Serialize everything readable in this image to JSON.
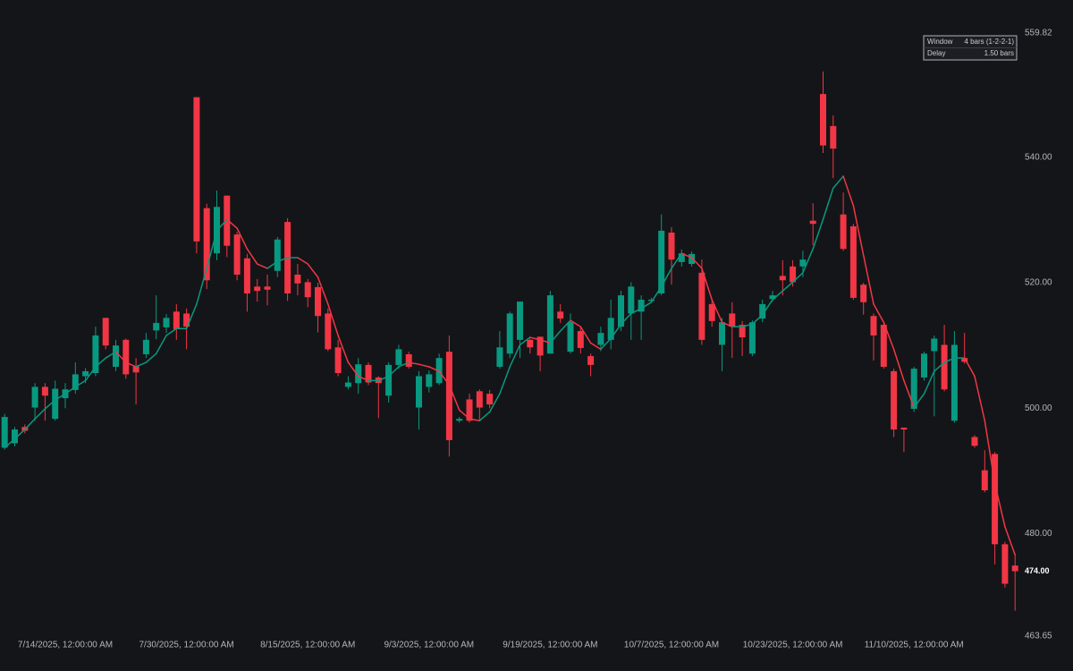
{
  "chart_data": {
    "type": "candlestick",
    "up_color": "#089981",
    "down_color": "#f23645",
    "grid": false,
    "categories": [
      null,
      null,
      null,
      null,
      null,
      null,
      "7/14/2025, 12:00:00 AM",
      null,
      null,
      null,
      null,
      null,
      null,
      null,
      null,
      null,
      null,
      null,
      "7/30/2025, 12:00:00 AM",
      null,
      null,
      null,
      null,
      null,
      null,
      null,
      null,
      null,
      null,
      null,
      "8/15/2025, 12:00:00 AM",
      null,
      null,
      null,
      null,
      null,
      null,
      null,
      null,
      null,
      null,
      null,
      "9/3/2025, 12:00:00 AM",
      null,
      null,
      null,
      null,
      null,
      null,
      null,
      null,
      null,
      null,
      null,
      "9/19/2025, 12:00:00 AM",
      null,
      null,
      null,
      null,
      null,
      null,
      null,
      null,
      null,
      null,
      null,
      "10/7/2025, 12:00:00 AM",
      null,
      null,
      null,
      null,
      null,
      null,
      null,
      null,
      null,
      null,
      null,
      "10/23/2025, 12:00:00 AM",
      null,
      null,
      null,
      null,
      null,
      null,
      null,
      null,
      null,
      null,
      null,
      "11/10/2025, 12:00:00 AM",
      null,
      null,
      null,
      null,
      null,
      null,
      null,
      null,
      null,
      null
    ],
    "open": [
      493.7,
      494.4,
      497.0,
      500.1,
      503.4,
      498.3,
      501.6,
      502.9,
      505.1,
      505.6,
      514.4,
      506.6,
      510.9,
      506.7,
      508.6,
      512.4,
      512.9,
      515.4,
      515.1,
      549.6,
      531.9,
      524.7,
      533.9,
      527.7,
      523.9,
      519.4,
      519.4,
      521.9,
      529.7,
      521.3,
      520.1,
      519.3,
      515.1,
      509.7,
      503.4,
      504.0,
      506.9,
      504.9,
      502.0,
      506.9,
      508.6,
      500.1,
      503.4,
      504.0,
      509.0,
      498.0,
      501.4,
      502.7,
      502.3,
      506.6,
      508.7,
      510.9,
      510.9,
      511.4,
      508.7,
      515.4,
      509.0,
      512.3,
      508.3,
      510.1,
      510.9,
      513.0,
      515.1,
      515.4,
      517.1,
      518.3,
      528.0,
      523.3,
      523.0,
      521.6,
      516.6,
      510.1,
      515.1,
      513.3,
      508.7,
      514.3,
      517.4,
      521.1,
      522.6,
      522.6,
      529.9,
      550.1,
      545.0,
      530.9,
      529.0,
      519.7,
      514.7,
      513.3,
      505.9,
      496.9,
      499.9,
      504.9,
      509.1,
      510.1,
      498.0,
      508.0,
      495.4,
      490.1,
      492.7,
      478.3,
      474.9
    ],
    "high": [
      499.1,
      497.0,
      497.4,
      504.0,
      504.0,
      504.4,
      504.0,
      507.3,
      506.4,
      513.0,
      514.4,
      510.9,
      511.1,
      508.0,
      512.0,
      518.0,
      515.0,
      516.6,
      515.9,
      549.6,
      532.6,
      534.7,
      533.9,
      528.1,
      524.6,
      520.6,
      521.3,
      527.3,
      530.3,
      523.0,
      520.6,
      520.0,
      515.9,
      510.9,
      505.1,
      508.0,
      507.3,
      505.1,
      507.3,
      510.1,
      509.0,
      505.9,
      506.0,
      508.7,
      511.6,
      498.6,
      502.3,
      503.0,
      502.9,
      512.3,
      515.4,
      517.0,
      511.1,
      511.4,
      518.7,
      516.6,
      515.1,
      513.0,
      508.7,
      513.0,
      517.3,
      518.7,
      520.1,
      518.0,
      517.6,
      530.9,
      528.9,
      525.3,
      525.0,
      523.7,
      517.3,
      514.4,
      516.9,
      513.9,
      514.0,
      517.3,
      518.7,
      523.6,
      523.6,
      525.1,
      532.7,
      553.7,
      546.7,
      534.4,
      529.4,
      520.0,
      515.1,
      513.4,
      506.3,
      496.9,
      506.6,
      509.0,
      511.6,
      513.3,
      512.3,
      512.0,
      495.7,
      493.3,
      493.0,
      478.7,
      476.6
    ],
    "low": [
      493.4,
      493.9,
      496.0,
      498.0,
      498.0,
      498.0,
      500.0,
      502.3,
      504.0,
      505.1,
      509.4,
      505.9,
      504.7,
      500.6,
      508.0,
      511.0,
      512.0,
      510.9,
      509.4,
      524.7,
      519.0,
      523.6,
      524.1,
      520.4,
      515.4,
      517.0,
      516.4,
      520.9,
      517.1,
      518.0,
      516.1,
      512.1,
      509.1,
      505.1,
      503.0,
      502.3,
      503.7,
      498.4,
      500.9,
      506.3,
      506.3,
      496.6,
      502.5,
      503.7,
      492.3,
      497.7,
      497.7,
      498.0,
      500.0,
      506.3,
      508.0,
      508.0,
      508.7,
      505.9,
      508.7,
      513.6,
      508.7,
      508.7,
      505.1,
      509.1,
      509.4,
      512.3,
      510.9,
      510.9,
      516.9,
      518.0,
      519.7,
      522.6,
      522.6,
      510.1,
      513.0,
      505.9,
      508.0,
      508.3,
      508.3,
      513.7,
      517.0,
      518.0,
      519.4,
      520.9,
      526.0,
      540.7,
      536.7,
      525.1,
      517.3,
      514.9,
      507.6,
      506.3,
      495.4,
      493.0,
      499.4,
      504.4,
      498.7,
      502.7,
      497.7,
      507.1,
      493.7,
      486.6,
      475.1,
      471.4,
      467.7
    ],
    "close": [
      498.6,
      496.6,
      496.4,
      503.4,
      502.0,
      503.1,
      503.0,
      505.4,
      505.9,
      511.6,
      510.0,
      510.0,
      505.4,
      505.7,
      510.9,
      513.6,
      514.4,
      512.6,
      513.0,
      526.6,
      520.4,
      532.1,
      525.9,
      521.3,
      518.3,
      518.7,
      518.9,
      526.9,
      518.3,
      519.9,
      517.7,
      514.7,
      509.4,
      505.6,
      504.1,
      507.0,
      504.1,
      504.0,
      506.9,
      509.4,
      506.6,
      505.1,
      505.4,
      508.0,
      494.9,
      498.3,
      498.0,
      500.1,
      500.6,
      509.7,
      515.1,
      517.0,
      509.7,
      508.4,
      518.0,
      514.3,
      513.7,
      509.6,
      506.9,
      512.0,
      514.4,
      518.0,
      519.4,
      517.3,
      517.3,
      528.3,
      523.7,
      524.7,
      524.6,
      510.9,
      513.9,
      513.7,
      513.0,
      511.3,
      513.7,
      516.6,
      518.0,
      520.4,
      520.1,
      523.7,
      529.4,
      541.9,
      541.4,
      525.4,
      517.6,
      516.9,
      511.6,
      506.6,
      496.6,
      496.6,
      506.3,
      508.7,
      511.1,
      503.0,
      510.1,
      507.4,
      494.0,
      486.9,
      478.3,
      472.0,
      474.0
    ],
    "ma_values": [
      493.7,
      495.1,
      496.6,
      498.3,
      499.9,
      501.3,
      502.3,
      503.4,
      504.4,
      506.6,
      508.0,
      509.0,
      507.3,
      506.6,
      507.3,
      508.7,
      511.6,
      512.7,
      512.7,
      516.6,
      522.3,
      528.3,
      530.1,
      528.7,
      525.4,
      523.0,
      522.3,
      523.4,
      524.0,
      524.0,
      523.0,
      520.9,
      516.6,
      511.6,
      507.3,
      505.1,
      504.4,
      504.4,
      505.1,
      506.6,
      507.3,
      507.0,
      506.6,
      505.9,
      503.7,
      499.7,
      498.3,
      498.0,
      499.4,
      502.3,
      506.6,
      510.1,
      511.3,
      510.9,
      510.4,
      512.3,
      514.0,
      513.0,
      510.4,
      509.4,
      511.1,
      513.4,
      515.1,
      515.9,
      516.9,
      519.4,
      522.3,
      524.7,
      524.0,
      522.3,
      517.3,
      513.7,
      513.0,
      513.0,
      513.4,
      514.9,
      517.3,
      518.7,
      520.1,
      521.6,
      525.4,
      530.1,
      535.1,
      537.0,
      532.3,
      524.4,
      516.6,
      513.7,
      509.4,
      504.4,
      500.1,
      502.3,
      505.9,
      507.3,
      508.0,
      508.0,
      505.1,
      498.0,
      488.0,
      481.1,
      476.6
    ],
    "ylim": [
      463.65,
      559.82
    ],
    "yticks": [
      463.65,
      {
        "value": 480,
        "label": "480.00"
      },
      {
        "value": 500,
        "label": "500.00"
      },
      {
        "value": 520,
        "label": "520.00"
      },
      {
        "value": 540,
        "label": "540.00"
      },
      559.82
    ],
    "last_price": {
      "value": 474,
      "label": "474.00"
    },
    "info": [
      {
        "label": "Window",
        "value": "4 bars (1-2-2-1)"
      },
      {
        "label": "Delay",
        "value": "1.50 bars"
      }
    ]
  }
}
